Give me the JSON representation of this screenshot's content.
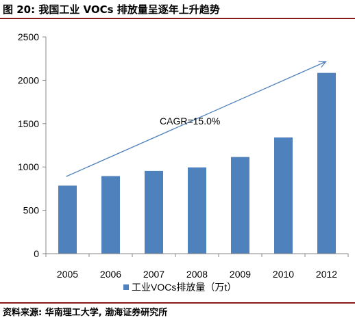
{
  "figure": {
    "title": "图 20:  我国工业 VOCs 排放量呈逐年上升趋势",
    "source": "资料来源:  华南理工大学,  渤海证券研究所"
  },
  "chart_data": {
    "type": "bar",
    "categories": [
      "2005",
      "2006",
      "2007",
      "2008",
      "2009",
      "2010",
      "2012"
    ],
    "series": [
      {
        "name": "工业VOCs排放量（万t）",
        "values": [
          785,
          895,
          955,
          995,
          1115,
          1340,
          2085
        ],
        "color": "#4f81bd"
      }
    ],
    "ylim": [
      0,
      2500
    ],
    "yticks": [
      0,
      500,
      1000,
      1500,
      2000,
      2500
    ],
    "xlabel": "",
    "ylabel": "",
    "grid": false,
    "legend": "bottom",
    "annotation": {
      "text": "CAGR=15.0%",
      "type": "arrow",
      "color": "#4f81bd"
    }
  }
}
